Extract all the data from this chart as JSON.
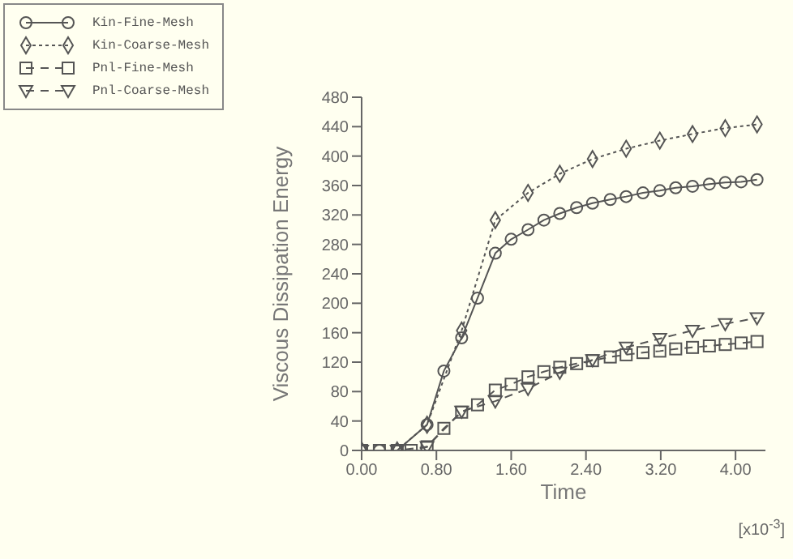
{
  "chart_data": {
    "type": "line",
    "xlabel": "Time",
    "ylabel": "Viscous Dissipation Energy",
    "annotations": [
      "[x10$^{-3}$]"
    ],
    "xlim": [
      0,
      4.32
    ],
    "xticks": [
      {
        "value": 0,
        "label": "0.00"
      },
      {
        "value": 0.8,
        "label": "0.80"
      },
      {
        "value": 1.6,
        "label": "1.60"
      },
      {
        "value": 2.4,
        "label": "2.40"
      },
      {
        "value": 3.2,
        "label": "3.20"
      },
      {
        "value": 4,
        "label": "4.00"
      }
    ],
    "ylim": [
      0,
      480
    ],
    "yticks": [
      0,
      40,
      80,
      120,
      160,
      200,
      240,
      280,
      320,
      360,
      400,
      440,
      480
    ],
    "grid": false,
    "legend": "top left",
    "series": [
      {
        "name": "Kin-Fine-Mesh",
        "color": "#555555",
        "marker": "circle",
        "line_style": "solid",
        "x": [
          0,
          0.19,
          0.38,
          0.7,
          0.88,
          1.07,
          1.24,
          1.43,
          1.6,
          1.78,
          1.95,
          2.12,
          2.3,
          2.47,
          2.66,
          2.83,
          3.01,
          3.19,
          3.36,
          3.54,
          3.72,
          3.89,
          4.06,
          4.23
        ],
        "values": [
          0,
          0,
          0,
          35,
          108,
          153,
          207,
          268,
          287,
          300,
          313,
          322,
          330,
          336,
          341,
          345,
          350,
          353,
          357,
          359,
          362,
          364,
          365,
          368
        ]
      },
      {
        "name": "Kin-Coarse-Mesh",
        "color": "#555555",
        "marker": "diamond",
        "line_style": "dotted",
        "x": [
          0,
          0.38,
          0.7,
          1.07,
          1.43,
          1.78,
          2.12,
          2.47,
          2.83,
          3.19,
          3.54,
          3.89,
          4.23
        ],
        "values": [
          0,
          0,
          35,
          163,
          313,
          350,
          376,
          396,
          410,
          421,
          430,
          438,
          443
        ]
      },
      {
        "name": "Pnl-Fine-Mesh",
        "color": "#555555",
        "marker": "square",
        "line_style": "dashed",
        "x": [
          0,
          0.19,
          0.38,
          0.53,
          0.7,
          0.88,
          1.07,
          1.24,
          1.43,
          1.6,
          1.78,
          1.95,
          2.12,
          2.3,
          2.47,
          2.66,
          2.83,
          3.01,
          3.19,
          3.36,
          3.54,
          3.72,
          3.89,
          4.06,
          4.23
        ],
        "values": [
          0,
          0,
          0,
          0,
          5,
          30,
          52,
          62,
          82,
          90,
          100,
          107,
          113,
          118,
          122,
          127,
          130,
          133,
          135,
          138,
          140,
          142,
          144,
          146,
          148
        ]
      },
      {
        "name": "Pnl-Coarse-Mesh",
        "color": "#555555",
        "marker": "triangle",
        "line_style": "dashed",
        "x": [
          0,
          0.38,
          0.7,
          1.07,
          1.43,
          1.78,
          2.12,
          2.47,
          2.83,
          3.19,
          3.54,
          3.89,
          4.23
        ],
        "values": [
          0,
          0,
          5,
          53,
          67,
          84,
          106,
          123,
          140,
          152,
          163,
          172,
          180
        ]
      }
    ]
  }
}
